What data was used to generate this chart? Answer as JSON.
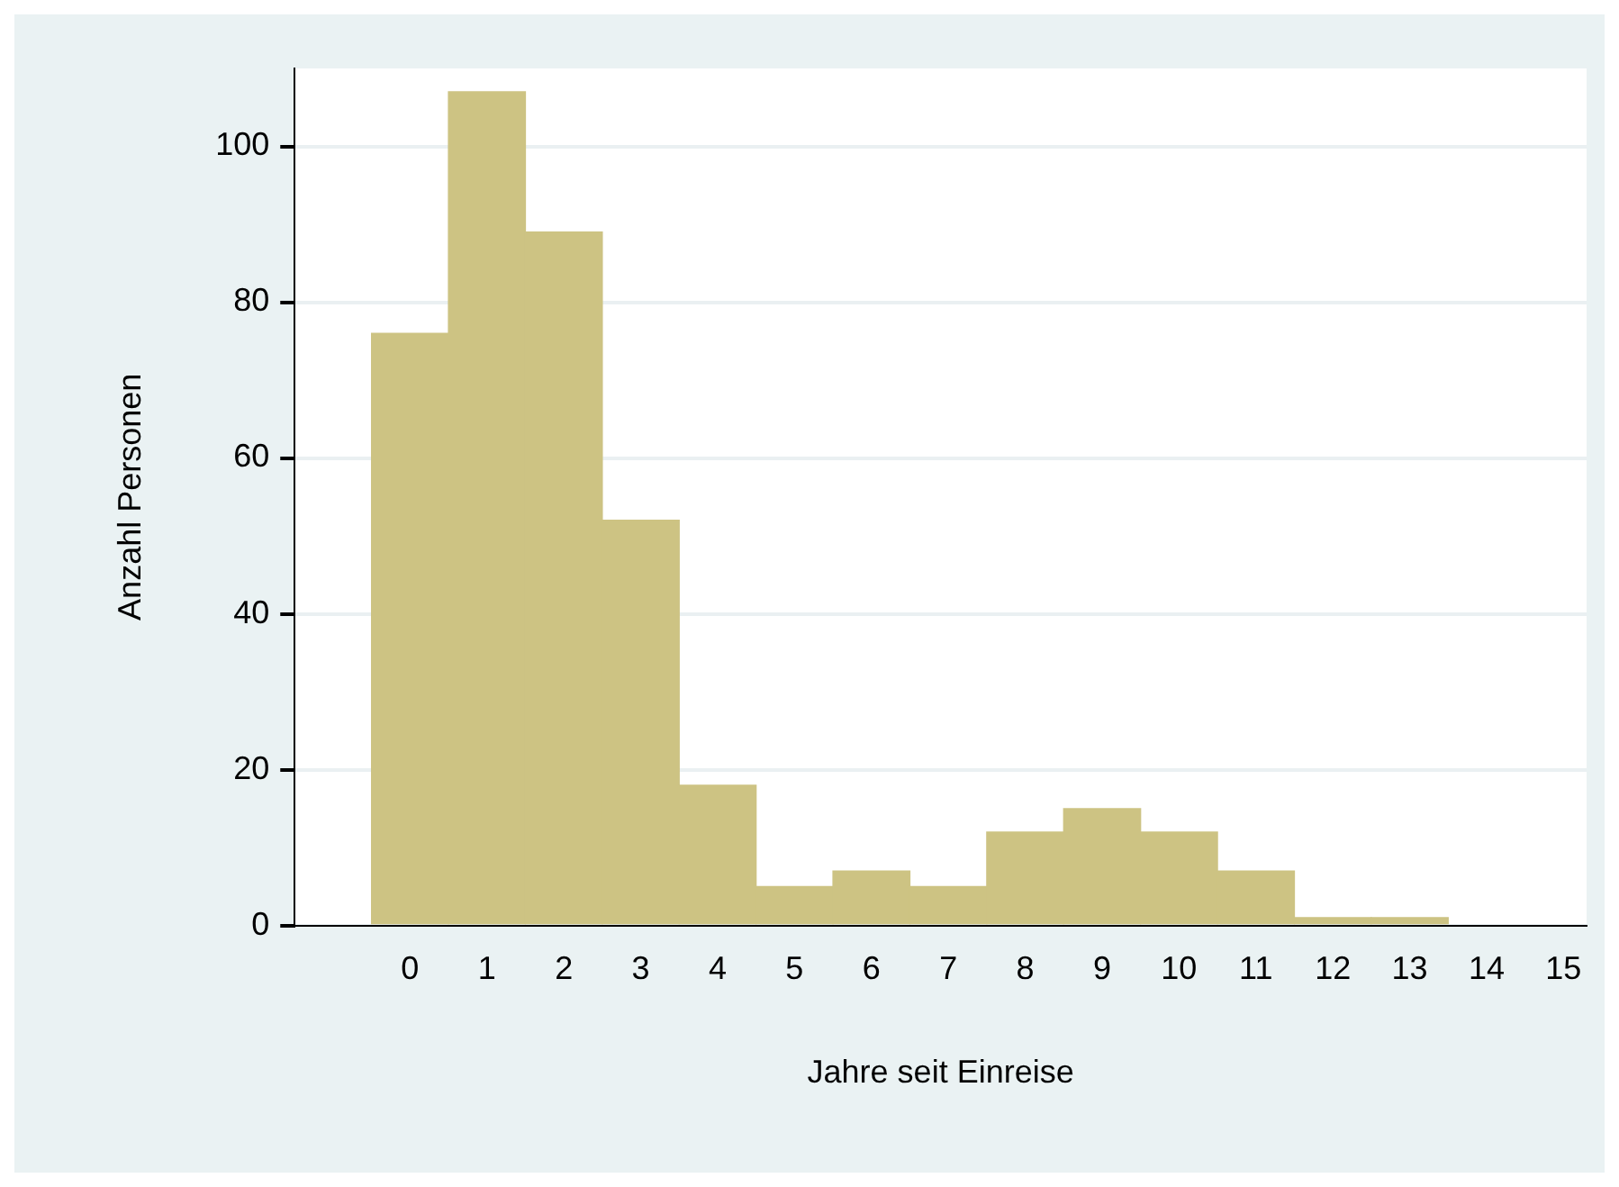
{
  "chart_data": {
    "type": "histogram",
    "xlabel": "Jahre seit Einreise",
    "ylabel": "Anzahl Personen",
    "bins": [
      -0.5,
      0.5,
      1.5,
      2.5,
      3.5,
      4.5,
      5.5,
      6.5,
      7.5,
      8.5,
      9.5,
      10.5,
      11.5,
      12.5,
      13.5
    ],
    "values": [
      76,
      107,
      89,
      52,
      18,
      5,
      7,
      5,
      12,
      15,
      12,
      7,
      1,
      1
    ],
    "color": "#cdc383",
    "xlim": [
      -1.5,
      15.3
    ],
    "xticks": [
      0,
      1,
      2,
      3,
      4,
      5,
      6,
      7,
      8,
      9,
      10,
      11,
      12,
      13,
      14,
      15
    ],
    "ylim": [
      0,
      110
    ],
    "yticks": [
      0,
      20,
      40,
      60,
      80,
      100
    ],
    "grid": "y",
    "legend": false
  }
}
